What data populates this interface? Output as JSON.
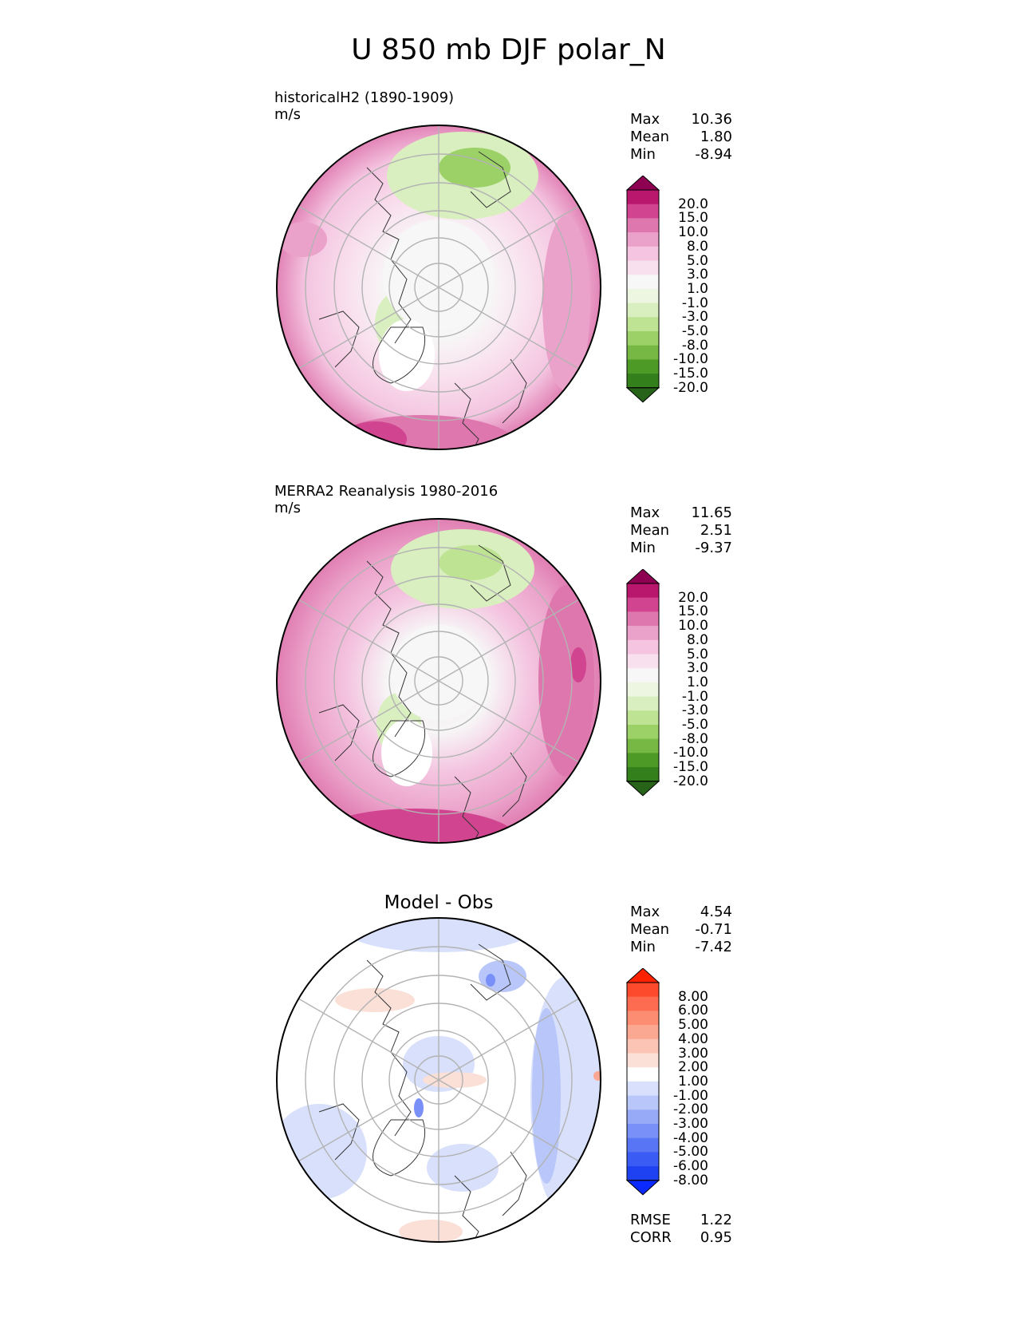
{
  "title": "U 850 mb DJF polar_N",
  "panels": [
    {
      "id": "model",
      "title": "historicalH2 (1890-1909)",
      "units": "m/s",
      "stats": [
        {
          "label": "Max",
          "value": "10.36"
        },
        {
          "label": "Mean",
          "value": "1.80"
        },
        {
          "label": "Min",
          "value": "-8.94"
        }
      ]
    },
    {
      "id": "obs",
      "title": "MERRA2 Reanalysis 1980-2016",
      "units": "m/s",
      "stats": [
        {
          "label": "Max",
          "value": "11.65"
        },
        {
          "label": "Mean",
          "value": "2.51"
        },
        {
          "label": "Min",
          "value": "-9.37"
        }
      ]
    },
    {
      "id": "diff",
      "title": "Model - Obs",
      "stats": [
        {
          "label": "Max",
          "value": "4.54"
        },
        {
          "label": "Mean",
          "value": "-0.71"
        },
        {
          "label": "Min",
          "value": "-7.42"
        }
      ],
      "extra_stats": [
        {
          "label": "RMSE",
          "value": "1.22"
        },
        {
          "label": "CORR",
          "value": "0.95"
        }
      ]
    }
  ],
  "colorbars": {
    "field": {
      "labels": [
        "20.0",
        "15.0",
        "10.0",
        "8.0",
        "5.0",
        "3.0",
        "1.0",
        "-1.0",
        "-3.0",
        "-5.0",
        "-8.0",
        "-10.0",
        "-15.0",
        "-20.0"
      ],
      "colors": [
        "#8e0152",
        "#b8176d",
        "#d1448f",
        "#de77ae",
        "#eba2ca",
        "#f4c4e0",
        "#f9e0ee",
        "#f7f7f7",
        "#edf6e0",
        "#d9efbf",
        "#bde393",
        "#9cd168",
        "#76b843",
        "#4d9a27",
        "#337f1c",
        "#276419"
      ]
    },
    "diff": {
      "labels": [
        "8.00",
        "6.00",
        "5.00",
        "4.00",
        "3.00",
        "2.00",
        "1.00",
        "-1.00",
        "-2.00",
        "-3.00",
        "-4.00",
        "-5.00",
        "-6.00",
        "-8.00"
      ],
      "colors": [
        "#ff2200",
        "#fe4a2c",
        "#fd6c50",
        "#fc8c72",
        "#fba892",
        "#fbc4b4",
        "#fbe0d7",
        "#ffffff",
        "#d8e0fb",
        "#b8c6fa",
        "#97aaf8",
        "#7890f7",
        "#5875f5",
        "#3a5cf4",
        "#1e42f2",
        "#0a2aff"
      ]
    }
  }
}
